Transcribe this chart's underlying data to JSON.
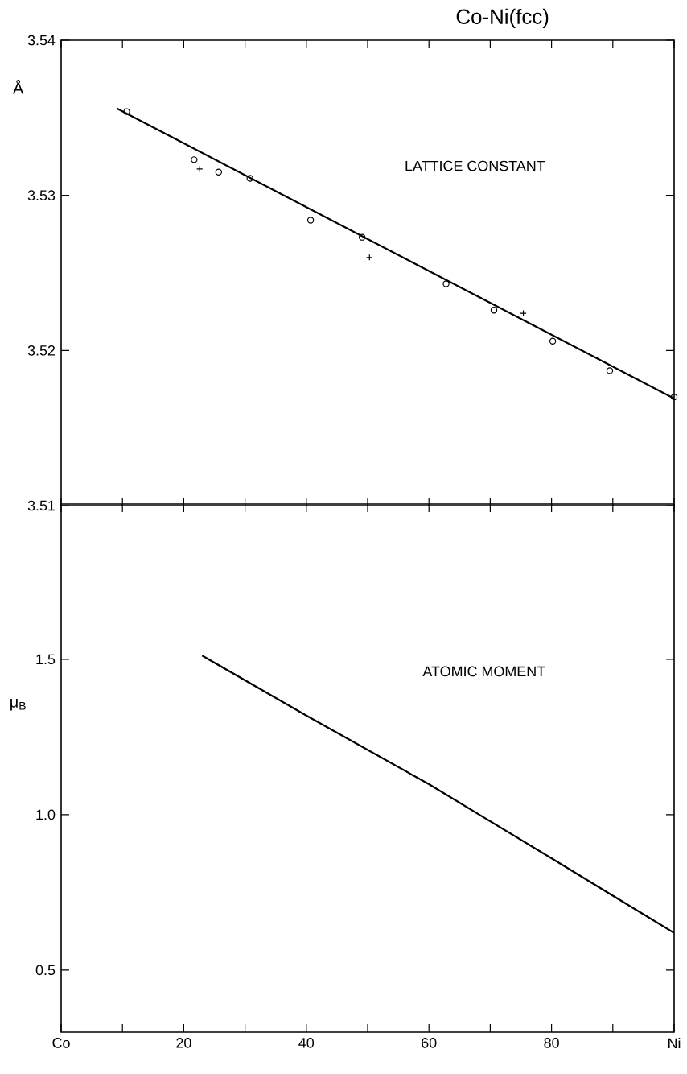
{
  "chart_data": [
    {
      "type": "scatter",
      "title": "Co-Ni(fcc)",
      "ylabel": "Å",
      "annotations": [
        "LATTICE CONSTANT"
      ],
      "xlim": [
        0,
        100
      ],
      "xticks": [
        0,
        10,
        20,
        30,
        40,
        50,
        60,
        70,
        80,
        90,
        100
      ],
      "ylim": [
        3.51,
        3.54
      ],
      "yticks": [
        3.51,
        3.52,
        3.53,
        3.54
      ],
      "tick_labels": "y",
      "series": [
        {
          "marker": "circle",
          "color": "#000000",
          "x": [
            10.7,
            21.7,
            25.7,
            30.8,
            40.7,
            49.1,
            62.8,
            70.6,
            80.2,
            89.5,
            100
          ],
          "values": [
            3.5354,
            3.5323,
            3.5315,
            3.5311,
            3.5284,
            3.5273,
            3.5243,
            3.5226,
            3.5206,
            3.5187,
            3.517
          ]
        },
        {
          "marker": "cross",
          "color": "#000000",
          "x": [
            22.6,
            50.3,
            75.4
          ],
          "values": [
            3.5317,
            3.526,
            3.5224
          ]
        },
        {
          "type": "line",
          "marker": "none",
          "line_style": "solid",
          "color": "#000000",
          "x": [
            9.1,
            100
          ],
          "values": [
            3.5356,
            3.5169
          ]
        }
      ]
    },
    {
      "type": "line",
      "ylabel": "μ$_{B}$",
      "annotations": [
        "ATOMIC MOMENT"
      ],
      "xlim": [
        0,
        100
      ],
      "xticks": [
        {
          "value": 0,
          "label": "Co"
        },
        {
          "value": 10,
          "label": null
        },
        20,
        {
          "value": 30,
          "label": null
        },
        40,
        {
          "value": 50,
          "label": null
        },
        60,
        {
          "value": 70,
          "label": null
        },
        80,
        {
          "value": 90,
          "label": null
        },
        {
          "value": 100,
          "label": "Ni"
        }
      ],
      "ylim": [
        0.3,
        2.0
      ],
      "yticks": [
        0.5,
        {
          "value": 1.0,
          "label": "1.0"
        },
        1.5
      ],
      "series": [
        {
          "marker": "none",
          "line_style": "solid",
          "color": "#000000",
          "x": [
            23,
            40,
            60,
            80.2,
            100
          ],
          "values": [
            1.512,
            1.319,
            1.098,
            0.857,
            0.619
          ]
        }
      ]
    }
  ]
}
